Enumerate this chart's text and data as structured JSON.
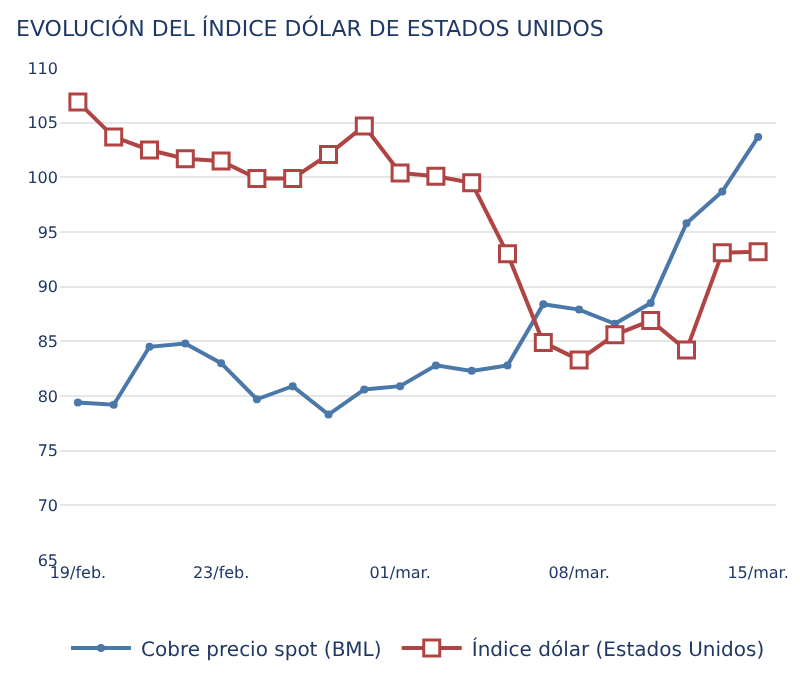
{
  "chart_data": {
    "type": "line",
    "title": "EVOLUCIÓN DEL ÍNDICE DÓLAR DE ESTADOS UNIDOS",
    "categories": [
      "19/feb.",
      null,
      null,
      null,
      "23/feb.",
      null,
      null,
      null,
      null,
      "01/mar.",
      null,
      null,
      null,
      null,
      "08/mar.",
      null,
      null,
      null,
      null,
      "15/mar."
    ],
    "series": [
      {
        "name": "Cobre precio spot (BML)",
        "color": "#4a78a8",
        "marker": "circle",
        "values": [
          79.4,
          79.2,
          84.5,
          84.8,
          83.0,
          79.7,
          80.9,
          78.3,
          80.6,
          80.9,
          82.8,
          82.3,
          82.8,
          88.4,
          87.9,
          86.6,
          88.5,
          95.8,
          98.7,
          103.7
        ]
      },
      {
        "name": "Índice dólar (Estados Unidos)",
        "color": "#b04444",
        "marker": "square",
        "values": [
          106.9,
          103.7,
          102.5,
          101.7,
          101.5,
          99.9,
          99.9,
          102.1,
          104.7,
          100.4,
          100.1,
          99.5,
          93.0,
          84.9,
          83.3,
          85.6,
          86.9,
          84.2,
          93.1,
          93.2
        ]
      }
    ],
    "ylim": [
      65,
      110
    ],
    "yticks": [
      65,
      70,
      75,
      80,
      85,
      90,
      95,
      100,
      105,
      110
    ],
    "grid": "y",
    "legend": "bottom",
    "line_style": "solid"
  }
}
